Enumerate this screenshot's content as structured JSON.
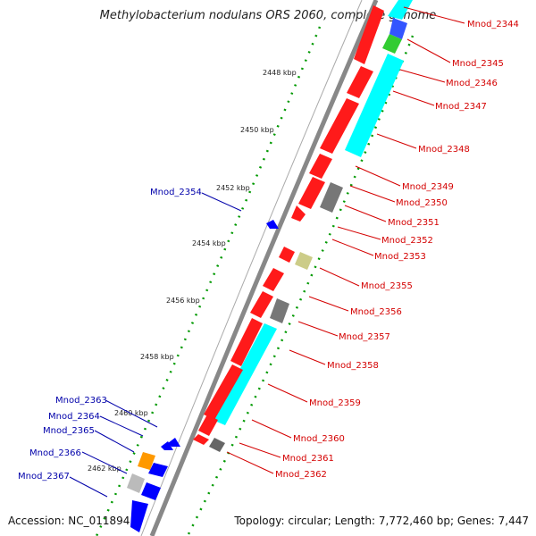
{
  "title": "Methylobacterium nodulans ORS 2060, complete genome",
  "accession": "Accession: NC_011894",
  "topology": "Topology: circular; Length: 7,772,460 bp; Genes: 7,447",
  "colors": {
    "forward_label": "#d40000",
    "reverse_label": "#0000aa",
    "red_gene": "#ff1a1a",
    "blue_gene": "#0000ff",
    "cyan_gene": "#00ffff",
    "grey_gene": "#777777",
    "tick": "#009900"
  },
  "kbp_labels": [
    "2448 kbp",
    "2450 kbp",
    "2452 kbp",
    "2454 kbp",
    "2456 kbp",
    "2458 kbp",
    "2460 kbp",
    "2462 kbp"
  ],
  "forward_genes": [
    "Mnod_2344",
    "Mnod_2345",
    "Mnod_2346",
    "Mnod_2347",
    "Mnod_2348",
    "Mnod_2349",
    "Mnod_2350",
    "Mnod_2351",
    "Mnod_2352",
    "Mnod_2353",
    "Mnod_2355",
    "Mnod_2356",
    "Mnod_2357",
    "Mnod_2358",
    "Mnod_2359",
    "Mnod_2360",
    "Mnod_2361",
    "Mnod_2362"
  ],
  "reverse_genes": [
    "Mnod_2354",
    "Mnod_2363",
    "Mnod_2364",
    "Mnod_2365",
    "Mnod_2366",
    "Mnod_2367"
  ]
}
